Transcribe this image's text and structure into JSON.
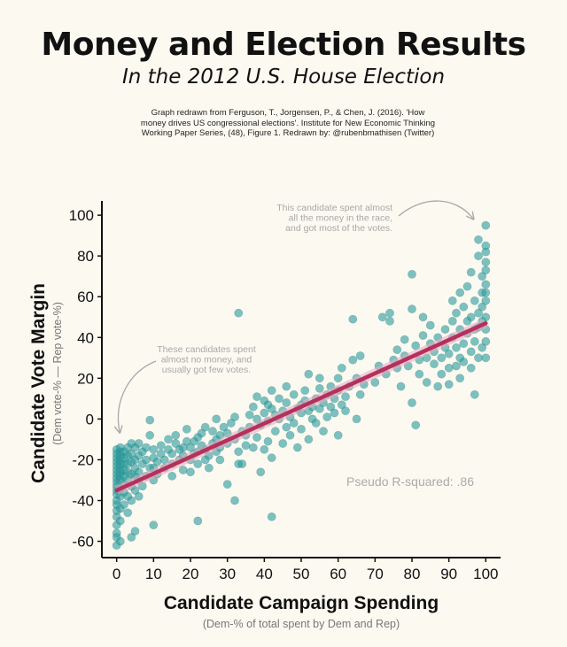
{
  "header": {
    "title": "Money and Election Results",
    "subtitle": "In the 2012 U.S. House Election",
    "source_lines": [
      "Graph redrawn from Ferguson, T., Jorgensen, P., & Chen, J. (2016). 'How",
      "money drives US congressional elections'. Institute for New Economic Thinking",
      "Working Paper Series, (48), Figure 1. Redrawn by: @rubenbmathisen (Twitter)"
    ]
  },
  "chart_data": {
    "type": "scatter",
    "title": "Money and Election Results",
    "xlabel": "Candidate Campaign Spending",
    "xlabel_sub": "(Dem-% of total spent by Dem and Rep)",
    "ylabel": "Candidate Vote Margin",
    "ylabel_sub": "(Dem vote-% — Rep vote-%)",
    "xlim": [
      -4,
      104
    ],
    "ylim": [
      -68,
      107
    ],
    "xticks": [
      0,
      10,
      20,
      30,
      40,
      50,
      60,
      70,
      80,
      90,
      100
    ],
    "yticks": [
      -60,
      -40,
      -20,
      0,
      20,
      40,
      60,
      80,
      100
    ],
    "grid": false,
    "colors": {
      "points": "#2a9a9b",
      "fit": "#b5305c",
      "band": "#e9a9bd",
      "annotation": "#a8a8a8",
      "axis": "#111111"
    },
    "fit_line": {
      "x": [
        0,
        100
      ],
      "y": [
        -35,
        47
      ]
    },
    "annotations": [
      {
        "name": "annotation-low-spend",
        "lines": [
          "These candidates spent",
          "almost no money, and",
          "usually got few votes."
        ]
      },
      {
        "name": "annotation-high-spend",
        "lines": [
          "This candidate spent almost",
          "all the money in the race,",
          "and got most of the votes."
        ]
      },
      {
        "name": "pseudo-r-squared",
        "lines": [
          "Pseudo R-squared: .86"
        ]
      }
    ],
    "points": [
      [
        0,
        -62
      ],
      [
        0,
        -58
      ],
      [
        0,
        -56
      ],
      [
        0,
        -52
      ],
      [
        0,
        -48
      ],
      [
        0,
        -45
      ],
      [
        0,
        -42
      ],
      [
        0,
        -40
      ],
      [
        0,
        -37
      ],
      [
        0,
        -35
      ],
      [
        0,
        -33
      ],
      [
        0,
        -31
      ],
      [
        0,
        -29
      ],
      [
        0,
        -27
      ],
      [
        0,
        -25
      ],
      [
        0,
        -23
      ],
      [
        0,
        -21
      ],
      [
        0,
        -19
      ],
      [
        0,
        -17
      ],
      [
        0,
        -15
      ],
      [
        1,
        -60
      ],
      [
        1,
        -50
      ],
      [
        1,
        -44
      ],
      [
        1,
        -38
      ],
      [
        1,
        -34
      ],
      [
        1,
        -30
      ],
      [
        1,
        -28
      ],
      [
        1,
        -26
      ],
      [
        1,
        -24
      ],
      [
        1,
        -22
      ],
      [
        1,
        -20
      ],
      [
        1,
        -18
      ],
      [
        1,
        -16
      ],
      [
        1,
        -14
      ],
      [
        2,
        -42
      ],
      [
        2,
        -36
      ],
      [
        2,
        -32
      ],
      [
        2,
        -28
      ],
      [
        2,
        -25
      ],
      [
        2,
        -22
      ],
      [
        2,
        -19
      ],
      [
        2,
        -16
      ],
      [
        3,
        -46
      ],
      [
        3,
        -38
      ],
      [
        3,
        -30
      ],
      [
        3,
        -26
      ],
      [
        3,
        -22
      ],
      [
        3,
        -18
      ],
      [
        3,
        -14
      ],
      [
        4,
        -58
      ],
      [
        4,
        -40
      ],
      [
        4,
        -33
      ],
      [
        4,
        -27
      ],
      [
        4,
        -21
      ],
      [
        4,
        -17
      ],
      [
        4,
        -12
      ],
      [
        5,
        -55
      ],
      [
        5,
        -35
      ],
      [
        5,
        -28
      ],
      [
        5,
        -24
      ],
      [
        5,
        -20
      ],
      [
        5,
        -14
      ],
      [
        6,
        -38
      ],
      [
        6,
        -30
      ],
      [
        6,
        -26
      ],
      [
        6,
        -18
      ],
      [
        6,
        -12
      ],
      [
        7,
        -33
      ],
      [
        7,
        -22
      ],
      [
        7,
        -16
      ],
      [
        8,
        -28
      ],
      [
        8,
        -20
      ],
      [
        8,
        -14
      ],
      [
        9,
        -24
      ],
      [
        9,
        -8
      ],
      [
        9,
        -0.5
      ],
      [
        10,
        -52
      ],
      [
        10,
        -30
      ],
      [
        10,
        -24
      ],
      [
        10,
        -19
      ],
      [
        10,
        -15
      ],
      [
        11,
        -27
      ],
      [
        11,
        -21
      ],
      [
        12,
        -17
      ],
      [
        12,
        -13
      ],
      [
        13,
        -24
      ],
      [
        13,
        -20
      ],
      [
        14,
        -15
      ],
      [
        14,
        -10
      ],
      [
        15,
        -28
      ],
      [
        15,
        -22
      ],
      [
        15,
        -17
      ],
      [
        16,
        -12
      ],
      [
        16,
        -8
      ],
      [
        17,
        -20
      ],
      [
        17,
        -15
      ],
      [
        18,
        -25
      ],
      [
        18,
        -18
      ],
      [
        18,
        -14
      ],
      [
        19,
        -11
      ],
      [
        19,
        -5
      ],
      [
        20,
        -26
      ],
      [
        20,
        -20
      ],
      [
        20,
        -14
      ],
      [
        21,
        -17
      ],
      [
        21,
        -11
      ],
      [
        22,
        -50
      ],
      [
        22,
        -22
      ],
      [
        22,
        -16
      ],
      [
        22,
        -9
      ],
      [
        23,
        -13
      ],
      [
        23,
        -7
      ],
      [
        24,
        -20
      ],
      [
        24,
        -15
      ],
      [
        24,
        -4
      ],
      [
        25,
        -24
      ],
      [
        25,
        -18
      ],
      [
        26,
        -12
      ],
      [
        26,
        -6
      ],
      [
        27,
        -16
      ],
      [
        27,
        -10
      ],
      [
        27,
        0
      ],
      [
        28,
        -20
      ],
      [
        28,
        -14
      ],
      [
        28,
        -8
      ],
      [
        29,
        -4
      ],
      [
        30,
        -32
      ],
      [
        30,
        -12
      ],
      [
        30,
        -7
      ],
      [
        31,
        -2
      ],
      [
        32,
        -40
      ],
      [
        32,
        -10
      ],
      [
        32,
        1
      ],
      [
        33,
        -22
      ],
      [
        33,
        -16
      ],
      [
        33,
        52
      ],
      [
        34,
        -22
      ],
      [
        34,
        -6
      ],
      [
        35,
        -13
      ],
      [
        35,
        -8
      ],
      [
        36,
        -4
      ],
      [
        36,
        2
      ],
      [
        37,
        -14
      ],
      [
        37,
        6
      ],
      [
        38,
        -9
      ],
      [
        38,
        0
      ],
      [
        38,
        11
      ],
      [
        39,
        -26
      ],
      [
        39,
        -3
      ],
      [
        40,
        -15
      ],
      [
        40,
        3
      ],
      [
        40,
        9
      ],
      [
        41,
        -11
      ],
      [
        41,
        -1
      ],
      [
        41,
        7
      ],
      [
        42,
        -48
      ],
      [
        42,
        -19
      ],
      [
        42,
        5
      ],
      [
        42,
        14
      ],
      [
        43,
        -6
      ],
      [
        43,
        2
      ],
      [
        44,
        0
      ],
      [
        44,
        10
      ],
      [
        45,
        -12
      ],
      [
        45,
        4
      ],
      [
        46,
        -4
      ],
      [
        46,
        8
      ],
      [
        46,
        16
      ],
      [
        47,
        -8
      ],
      [
        47,
        1
      ],
      [
        48,
        -2
      ],
      [
        48,
        12
      ],
      [
        49,
        -14
      ],
      [
        49,
        5
      ],
      [
        50,
        -5
      ],
      [
        50,
        3
      ],
      [
        50,
        7
      ],
      [
        51,
        9
      ],
      [
        51,
        14
      ],
      [
        52,
        -10
      ],
      [
        52,
        4
      ],
      [
        52,
        22
      ],
      [
        53,
        0
      ],
      [
        53,
        6
      ],
      [
        54,
        -2
      ],
      [
        54,
        10
      ],
      [
        55,
        5
      ],
      [
        55,
        15
      ],
      [
        55,
        20
      ],
      [
        56,
        -6
      ],
      [
        56,
        8
      ],
      [
        57,
        12
      ],
      [
        57,
        1
      ],
      [
        58,
        6
      ],
      [
        58,
        16
      ],
      [
        59,
        10
      ],
      [
        59,
        3
      ],
      [
        60,
        -8
      ],
      [
        60,
        14
      ],
      [
        60,
        20
      ],
      [
        61,
        7
      ],
      [
        61,
        25
      ],
      [
        62,
        11
      ],
      [
        62,
        4
      ],
      [
        63,
        16
      ],
      [
        64,
        29
      ],
      [
        64,
        49
      ],
      [
        65,
        0
      ],
      [
        65,
        20
      ],
      [
        66,
        12
      ],
      [
        66,
        31
      ],
      [
        67,
        17
      ],
      [
        70,
        18
      ],
      [
        71,
        26
      ],
      [
        72,
        50
      ],
      [
        73,
        22
      ],
      [
        74,
        48
      ],
      [
        74,
        52
      ],
      [
        75,
        29
      ],
      [
        76,
        25
      ],
      [
        76,
        34
      ],
      [
        77,
        16
      ],
      [
        78,
        31
      ],
      [
        78,
        39
      ],
      [
        79,
        26
      ],
      [
        80,
        8
      ],
      [
        80,
        71
      ],
      [
        80,
        54
      ],
      [
        81,
        -3
      ],
      [
        81,
        36
      ],
      [
        82,
        22
      ],
      [
        82,
        29
      ],
      [
        83,
        41
      ],
      [
        83,
        50
      ],
      [
        84,
        30
      ],
      [
        84,
        18
      ],
      [
        85,
        37
      ],
      [
        85,
        46
      ],
      [
        86,
        33
      ],
      [
        86,
        27
      ],
      [
        87,
        40
      ],
      [
        87,
        16
      ],
      [
        88,
        30
      ],
      [
        88,
        22
      ],
      [
        89,
        35
      ],
      [
        89,
        44
      ],
      [
        90,
        25
      ],
      [
        90,
        32
      ],
      [
        90,
        17
      ],
      [
        91,
        40
      ],
      [
        91,
        48
      ],
      [
        91,
        58
      ],
      [
        92,
        26
      ],
      [
        92,
        35
      ],
      [
        92,
        52
      ],
      [
        93,
        30
      ],
      [
        93,
        44
      ],
      [
        93,
        62
      ],
      [
        93,
        20
      ],
      [
        94,
        37
      ],
      [
        94,
        55
      ],
      [
        94,
        28
      ],
      [
        95,
        48
      ],
      [
        95,
        42
      ],
      [
        95,
        65
      ],
      [
        96,
        33
      ],
      [
        96,
        50
      ],
      [
        96,
        25
      ],
      [
        96,
        72
      ],
      [
        97,
        44
      ],
      [
        97,
        58
      ],
      [
        97,
        38
      ],
      [
        97,
        12
      ],
      [
        98,
        52
      ],
      [
        98,
        80
      ],
      [
        98,
        45
      ],
      [
        98,
        30
      ],
      [
        98,
        88
      ],
      [
        99,
        62
      ],
      [
        99,
        48
      ],
      [
        99,
        35
      ],
      [
        99,
        70
      ],
      [
        99,
        55
      ],
      [
        100,
        95
      ],
      [
        100,
        85
      ],
      [
        100,
        77
      ],
      [
        100,
        66
      ],
      [
        100,
        58
      ],
      [
        100,
        50
      ],
      [
        100,
        44
      ],
      [
        100,
        38
      ],
      [
        100,
        30
      ],
      [
        100,
        73
      ],
      [
        100,
        62
      ],
      [
        100,
        82
      ]
    ]
  }
}
